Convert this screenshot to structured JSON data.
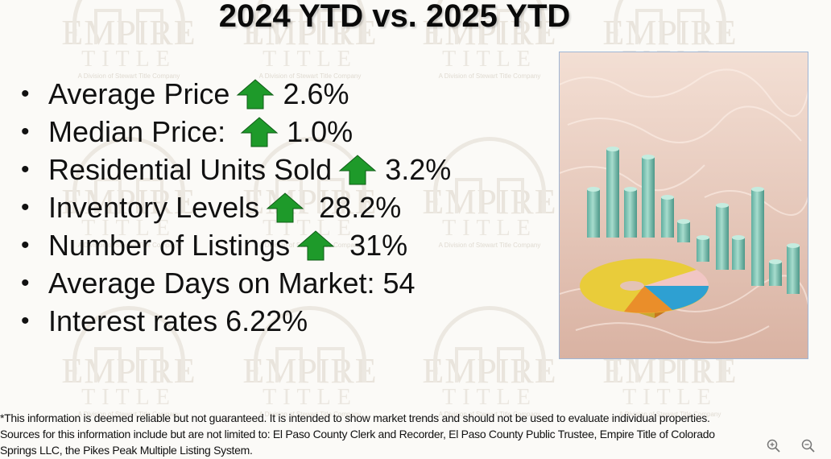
{
  "slide": {
    "title": "2024 YTD vs. 2025 YTD",
    "bullets": [
      {
        "label": "Average Price",
        "trend": "up",
        "value": "2.6%"
      },
      {
        "label": "Median Price:",
        "trend": "up",
        "value": "1.0%"
      },
      {
        "label": "Residential Units Sold",
        "trend": "up",
        "value": "3.2%"
      },
      {
        "label": "Inventory Levels",
        "trend": "up",
        "value": "28.2%"
      },
      {
        "label": "Number of Listings",
        "trend": "up",
        "value": "31%"
      },
      {
        "label": "Average Days on Market: 54",
        "trend": "",
        "value": ""
      },
      {
        "label": "Interest rates 6.22%",
        "trend": "",
        "value": ""
      }
    ],
    "arrow_color": "#1e9a2a",
    "footnote": {
      "line1": "*This information is deemed reliable but not guaranteed.  It is intended to show market trends and should not be used to evaluate individual properties.",
      "line2": "Sources for this information include but are not limited to: El Paso County Clerk and Recorder, El Paso County Public Trustee, Empire Title of Colorado",
      "line3": "Springs LLC, the Pikes Peak Multiple Listing System."
    }
  },
  "watermark": {
    "word1": "EMPIRE",
    "word2": "TITLE",
    "tagline": "A Division of Stewart Title Company"
  },
  "viewer": {
    "zoom_in_icon": "zoom-in-icon",
    "zoom_out_icon": "zoom-out-icon"
  }
}
